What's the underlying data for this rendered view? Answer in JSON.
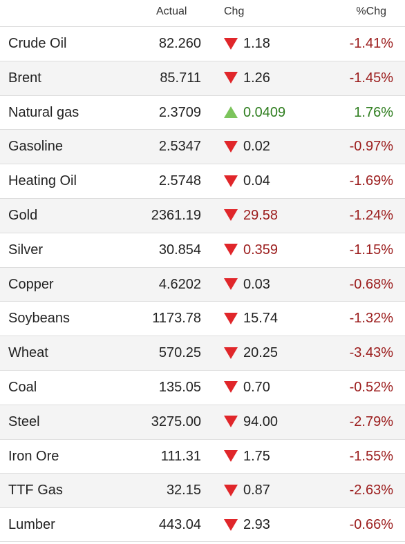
{
  "header": {
    "actual": "Actual",
    "chg": "Chg",
    "pct": "%Chg"
  },
  "colors": {
    "down_arrow": "#e0262a",
    "up_arrow": "#7cc45c",
    "negative_text": "#9b1c1c",
    "positive_text": "#2e7d1e",
    "stripe": "#f4f4f4"
  },
  "rows": [
    {
      "name": "Crude Oil",
      "actual": "82.260",
      "chg": "1.18",
      "pct": "-1.41%",
      "dir": "down",
      "chg_color": "neutral"
    },
    {
      "name": "Brent",
      "actual": "85.711",
      "chg": "1.26",
      "pct": "-1.45%",
      "dir": "down",
      "chg_color": "neutral"
    },
    {
      "name": "Natural gas",
      "actual": "2.3709",
      "chg": "0.0409",
      "pct": "1.76%",
      "dir": "up",
      "chg_color": "green"
    },
    {
      "name": "Gasoline",
      "actual": "2.5347",
      "chg": "0.02",
      "pct": "-0.97%",
      "dir": "down",
      "chg_color": "neutral"
    },
    {
      "name": "Heating Oil",
      "actual": "2.5748",
      "chg": "0.04",
      "pct": "-1.69%",
      "dir": "down",
      "chg_color": "neutral"
    },
    {
      "name": "Gold",
      "actual": "2361.19",
      "chg": "29.58",
      "pct": "-1.24%",
      "dir": "down",
      "chg_color": "red"
    },
    {
      "name": "Silver",
      "actual": "30.854",
      "chg": "0.359",
      "pct": "-1.15%",
      "dir": "down",
      "chg_color": "red"
    },
    {
      "name": "Copper",
      "actual": "4.6202",
      "chg": "0.03",
      "pct": "-0.68%",
      "dir": "down",
      "chg_color": "neutral"
    },
    {
      "name": "Soybeans",
      "actual": "1173.78",
      "chg": "15.74",
      "pct": "-1.32%",
      "dir": "down",
      "chg_color": "neutral"
    },
    {
      "name": "Wheat",
      "actual": "570.25",
      "chg": "20.25",
      "pct": "-3.43%",
      "dir": "down",
      "chg_color": "neutral"
    },
    {
      "name": "Coal",
      "actual": "135.05",
      "chg": "0.70",
      "pct": "-0.52%",
      "dir": "down",
      "chg_color": "neutral"
    },
    {
      "name": "Steel",
      "actual": "3275.00",
      "chg": "94.00",
      "pct": "-2.79%",
      "dir": "down",
      "chg_color": "neutral"
    },
    {
      "name": "Iron Ore",
      "actual": "111.31",
      "chg": "1.75",
      "pct": "-1.55%",
      "dir": "down",
      "chg_color": "neutral"
    },
    {
      "name": "TTF Gas",
      "actual": "32.15",
      "chg": "0.87",
      "pct": "-2.63%",
      "dir": "down",
      "chg_color": "neutral"
    },
    {
      "name": "Lumber",
      "actual": "443.04",
      "chg": "2.93",
      "pct": "-0.66%",
      "dir": "down",
      "chg_color": "neutral"
    }
  ]
}
